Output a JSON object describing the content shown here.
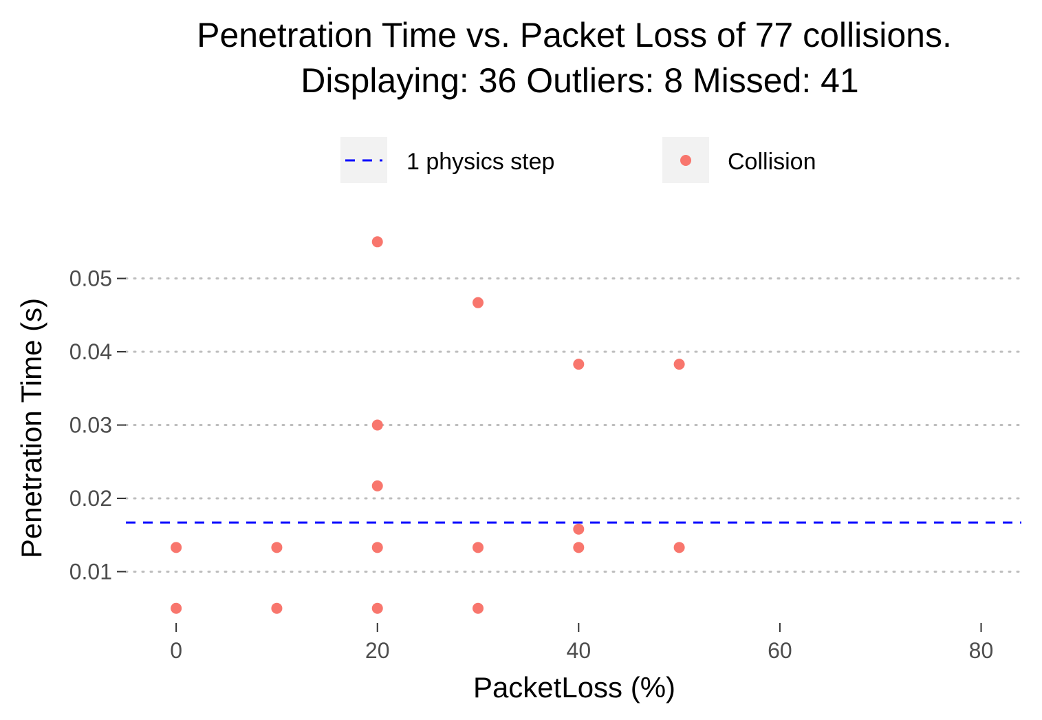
{
  "chart_data": {
    "type": "scatter",
    "title_lines": [
      "Penetration Time vs. Packet Loss of 77 collisions.",
      "Displaying: 36 Outliers: 8 Missed: 41"
    ],
    "xlabel": "PacketLoss (%)",
    "ylabel": "Penetration Time (s)",
    "xlim": [
      -5,
      84
    ],
    "ylim": [
      0.003,
      0.057
    ],
    "x_ticks": [
      0,
      20,
      40,
      60,
      80
    ],
    "x_tick_labels": [
      "0",
      "20",
      "40",
      "60",
      "80"
    ],
    "y_ticks": [
      0.01,
      0.02,
      0.03,
      0.04,
      0.05
    ],
    "y_tick_labels": [
      "0.01",
      "0.02",
      "0.03",
      "0.04",
      "0.05"
    ],
    "grid": "horizontal-dotted",
    "legend_position": "top",
    "legend": [
      {
        "label": "1 physics step",
        "kind": "dashed-line",
        "color": "#0000ff"
      },
      {
        "label": "Collision",
        "kind": "point",
        "color": "#f8766d"
      }
    ],
    "reference_line": {
      "name": "1 physics step",
      "y": 0.0167,
      "color": "#0000ff",
      "style": "dashed"
    },
    "series": [
      {
        "name": "Collision",
        "color": "#f8766d",
        "points": [
          {
            "x": 0,
            "y": 0.0133
          },
          {
            "x": 0,
            "y": 0.005
          },
          {
            "x": 10,
            "y": 0.0133
          },
          {
            "x": 10,
            "y": 0.005
          },
          {
            "x": 20,
            "y": 0.055
          },
          {
            "x": 20,
            "y": 0.03
          },
          {
            "x": 20,
            "y": 0.0217
          },
          {
            "x": 20,
            "y": 0.0133
          },
          {
            "x": 20,
            "y": 0.005
          },
          {
            "x": 30,
            "y": 0.0467
          },
          {
            "x": 30,
            "y": 0.0133
          },
          {
            "x": 30,
            "y": 0.005
          },
          {
            "x": 40,
            "y": 0.0383
          },
          {
            "x": 40,
            "y": 0.0158
          },
          {
            "x": 40,
            "y": 0.0133
          },
          {
            "x": 50,
            "y": 0.0383
          },
          {
            "x": 50,
            "y": 0.0133
          }
        ]
      }
    ]
  }
}
